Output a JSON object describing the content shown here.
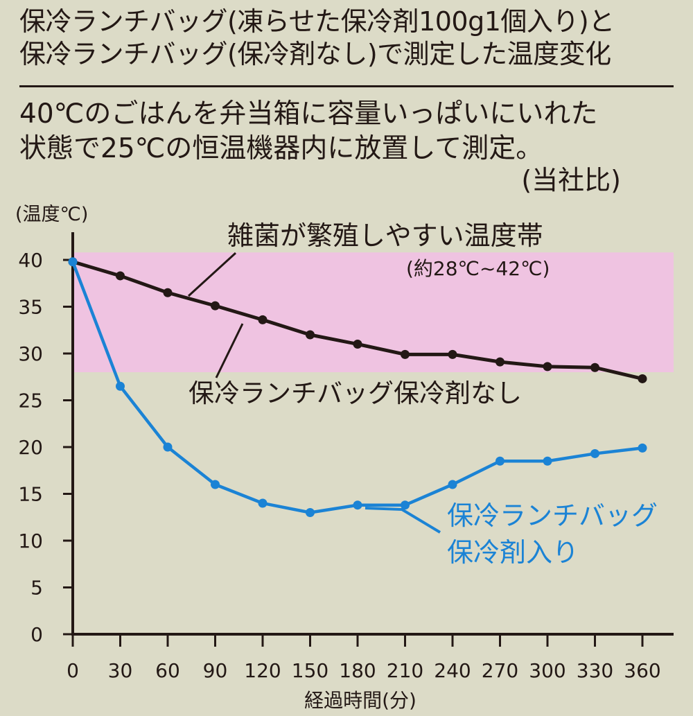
{
  "header": {
    "title_line1": "保冷ランチバッグ(凍らせた保冷剤100g1個入り)と",
    "title_line2": "保冷ランチバッグ(保冷剤なし)で測定した温度変化",
    "desc_line1": "40℃のごはんを弁当箱に容量いっぱいにいれた",
    "desc_line2": "状態で25℃の恒温機器内に放置して測定。",
    "note": "(当社比)"
  },
  "chart_data": {
    "type": "line",
    "ylabel": "(温度℃)",
    "xlabel": "経過時間(分)",
    "x": [
      0,
      30,
      60,
      90,
      120,
      150,
      180,
      210,
      240,
      270,
      300,
      330,
      360
    ],
    "xticks": [
      "0",
      "30",
      "60",
      "90",
      "120",
      "150",
      "180",
      "210",
      "240",
      "270",
      "300",
      "330",
      "360"
    ],
    "yticks": [
      "0",
      "5",
      "10",
      "15",
      "20",
      "25",
      "30",
      "35",
      "40"
    ],
    "xlim": [
      0,
      375
    ],
    "ylim": [
      0,
      40
    ],
    "band": {
      "range": [
        28,
        42
      ],
      "color": "#efc3e1",
      "label": "雑菌が繁殖しやすい温度帯",
      "sublabel": "(約28℃~42℃)"
    },
    "series": [
      {
        "name": "保冷ランチバッグ保冷剤なし",
        "values": [
          39.8,
          38.3,
          36.5,
          35.1,
          33.6,
          32.0,
          31.0,
          29.9,
          29.9,
          29.1,
          28.6,
          28.5,
          27.3
        ],
        "color": "#231815"
      },
      {
        "name_line1": "保冷ランチバッグ",
        "name_line2": "保冷剤入り",
        "values": [
          39.8,
          26.5,
          20.0,
          16.0,
          14.0,
          13.0,
          13.8,
          13.8,
          16.0,
          18.5,
          18.5,
          19.3,
          19.9
        ],
        "color": "#1b83d5"
      }
    ]
  }
}
